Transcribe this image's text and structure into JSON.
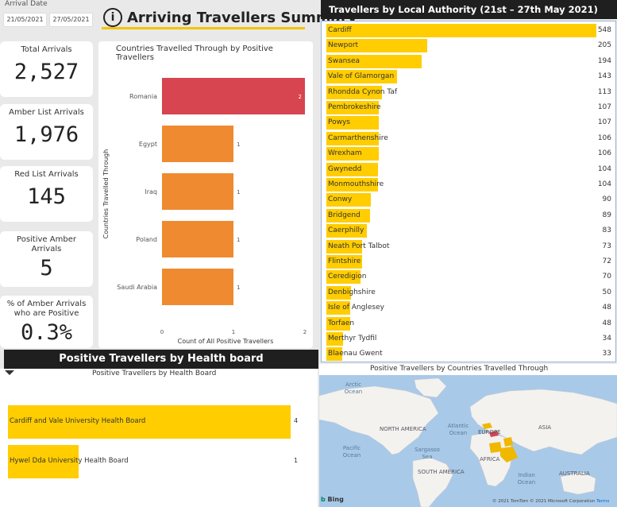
{
  "filter": {
    "label": "Arrival Date",
    "start": "21/05/2021",
    "end": "27/05/2021"
  },
  "header": {
    "icon": "i",
    "title": "Arriving Travellers Summary",
    "accent": "#f5c400"
  },
  "cards": [
    {
      "label": "Total Arrivals",
      "value": "2,527"
    },
    {
      "label": "Amber List Arrivals",
      "value": "1,976"
    },
    {
      "label": "Red List Arrivals",
      "value": "145"
    },
    {
      "label": "Positive Amber Arrivals",
      "value": "5"
    },
    {
      "label": "% of Amber Arrivals who are Positive",
      "value": "0.3%"
    }
  ],
  "chart_data": [
    {
      "type": "bar",
      "orientation": "horizontal",
      "title": "Countries Travelled Through by Positive Travellers",
      "xlabel": "Count of All Positive Travellers",
      "ylabel": "Countries Travelled Through",
      "categories": [
        "Romania",
        "Egypt",
        "Iraq",
        "Poland",
        "Saudi Arabia"
      ],
      "values": [
        2,
        1,
        1,
        1,
        1
      ],
      "colors": [
        "#d64550",
        "#f08a30",
        "#f08a30",
        "#f08a30",
        "#f08a30"
      ],
      "xlim": [
        0,
        2
      ],
      "xticks": [
        "0",
        "1",
        "2"
      ]
    },
    {
      "type": "bar",
      "orientation": "horizontal",
      "title": "Travellers by Local Authority (21st – 27th May 2021)",
      "categories": [
        "Cardiff",
        "Newport",
        "Swansea",
        "Vale of Glamorgan",
        "Rhondda Cynon Taf",
        "Pembrokeshire",
        "Powys",
        "Carmarthenshire",
        "Wrexham",
        "Gwynedd",
        "Monmouthshire",
        "Conwy",
        "Bridgend",
        "Caerphilly",
        "Neath Port Talbot",
        "Flintshire",
        "Ceredigion",
        "Denbighshire",
        "Isle of Anglesey",
        "Torfaen",
        "Merthyr Tydfil",
        "Blaenau Gwent"
      ],
      "values": [
        548,
        205,
        194,
        143,
        113,
        107,
        107,
        106,
        106,
        104,
        104,
        90,
        89,
        83,
        73,
        72,
        70,
        50,
        48,
        48,
        34,
        33
      ],
      "color": "#ffcd00"
    },
    {
      "type": "bar",
      "orientation": "horizontal",
      "title": "Positive Travellers by Health Board",
      "banner": "Positive Travellers by Health board",
      "categories": [
        "Cardiff and Vale University Health Board",
        "Hywel Dda University Health Board"
      ],
      "values": [
        4,
        1
      ],
      "color": "#ffcd00"
    }
  ],
  "map": {
    "title": "Positive Travellers by Countries Travelled Through",
    "labels": {
      "arctic": "Arctic Ocean",
      "north_america": "NORTH AMERICA",
      "europe": "EUROPE",
      "asia": "ASIA",
      "pacific": "Pacific Ocean",
      "atlantic": "Atlantic Ocean",
      "sargasso": "Sargasso Sea",
      "africa": "AFRICA",
      "south_america": "SOUTH AMERICA",
      "indian": "Indian Ocean",
      "australia": "AUSTRALIA"
    },
    "brand": "Bing",
    "credit": "© 2021 TomTom © 2021 Microsoft Corporation",
    "terms": "Terms",
    "ocean_color": "#a9c9e8",
    "land_color": "#f4f2ee"
  }
}
